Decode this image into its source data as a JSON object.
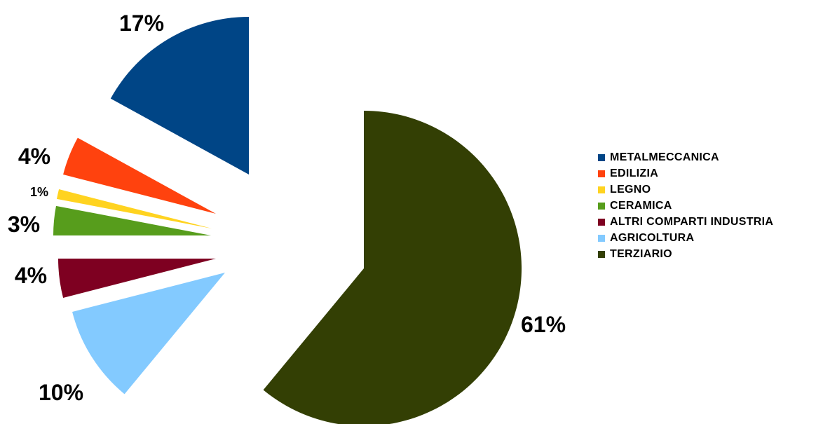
{
  "chart_data": {
    "type": "pie",
    "exploded": true,
    "slices": [
      {
        "label": "TERZIARIO",
        "value": 61,
        "display": "61%",
        "color": "#333f04"
      },
      {
        "label": "AGRICOLTURA",
        "value": 10,
        "display": "10%",
        "color": "#83caff"
      },
      {
        "label": "ALTRI COMPARTI INDUSTRIA",
        "value": 4,
        "display": "4%",
        "color": "#7e0021"
      },
      {
        "label": "CERAMICA",
        "value": 3,
        "display": "3%",
        "color": "#579d1c"
      },
      {
        "label": "LEGNO",
        "value": 1,
        "display": "1%",
        "color": "#ffd320"
      },
      {
        "label": "EDILIZIA",
        "value": 4,
        "display": "4%",
        "color": "#ff420e"
      },
      {
        "label": "METALMECCANICA",
        "value": 17,
        "display": "17%",
        "color": "#004586"
      }
    ],
    "legend": {
      "position": "right",
      "items": [
        {
          "label": "METALMECCANICA",
          "color": "#004586"
        },
        {
          "label": "EDILIZIA",
          "color": "#ff420e"
        },
        {
          "label": "LEGNO",
          "color": "#ffd320"
        },
        {
          "label": "CERAMICA",
          "color": "#579d1c"
        },
        {
          "label": "ALTRI COMPARTI INDUSTRIA",
          "color": "#7e0021"
        },
        {
          "label": "AGRICOLTURA",
          "color": "#83caff"
        },
        {
          "label": "TERZIARIO",
          "color": "#333f04"
        }
      ]
    }
  }
}
